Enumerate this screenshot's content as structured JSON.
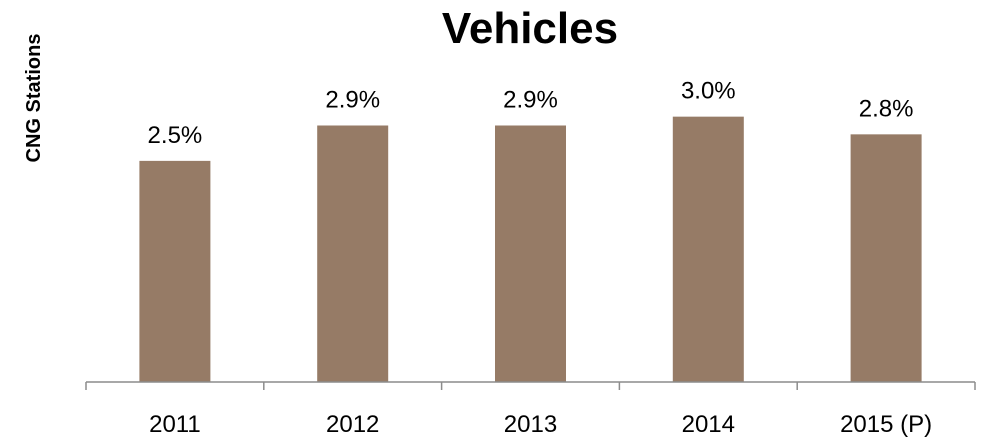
{
  "chart_data": {
    "type": "bar",
    "title": "Vehicles",
    "xlabel": "",
    "ylabel": "CNG Stations",
    "categories": [
      "2011",
      "2012",
      "2013",
      "2014",
      "2015 (P)"
    ],
    "values": [
      2.5,
      2.9,
      2.9,
      3.0,
      2.8
    ],
    "data_labels": [
      "2.5%",
      "2.9%",
      "2.9%",
      "3.0%",
      "2.8%"
    ],
    "ylim": [
      0,
      3.03
    ],
    "grid": false,
    "legend": "none",
    "bar_color": "#967b66",
    "axis_color": "#8c8c8c"
  }
}
